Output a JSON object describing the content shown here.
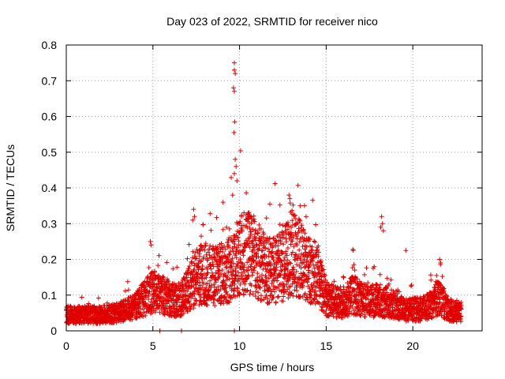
{
  "chart_data": {
    "type": "scatter",
    "title": "Day 023 of 2022, SRMTID for receiver nico",
    "xlabel": "GPS time / hours",
    "ylabel": "SRMTID / TECUs",
    "xlim": [
      0,
      24
    ],
    "ylim": [
      0,
      0.8
    ],
    "xticks": [
      0,
      5,
      10,
      15,
      20
    ],
    "xtick_labels": [
      "0",
      "5",
      "10",
      "15",
      "20"
    ],
    "yticks": [
      0,
      0.1,
      0.2,
      0.3,
      0.4,
      0.5,
      0.6,
      0.7,
      0.8
    ],
    "ytick_labels": [
      "0",
      "0.1",
      "0.2",
      "0.3",
      "0.4",
      "0.5",
      "0.6",
      "0.7",
      "0.8"
    ],
    "grid": true,
    "marker": "+",
    "color": "#e00000",
    "series": [
      {
        "name": "SRMTID",
        "baseline_profile": {
          "hours": [
            0,
            1,
            2,
            3,
            4,
            4.5,
            5,
            5.5,
            6,
            6.5,
            7,
            7.5,
            8,
            8.5,
            9,
            9.5,
            10,
            10.5,
            11,
            11.5,
            12,
            12.5,
            13,
            13.5,
            14,
            14.5,
            15,
            15.5,
            16,
            16.5,
            17,
            17.5,
            18,
            18.5,
            19,
            19.5,
            20,
            20.5,
            21,
            21.5,
            22,
            22.8
          ],
          "typical_srmtid": [
            0.045,
            0.045,
            0.045,
            0.05,
            0.07,
            0.09,
            0.11,
            0.1,
            0.09,
            0.08,
            0.11,
            0.15,
            0.16,
            0.15,
            0.16,
            0.18,
            0.21,
            0.22,
            0.2,
            0.17,
            0.17,
            0.18,
            0.22,
            0.2,
            0.17,
            0.16,
            0.09,
            0.08,
            0.08,
            0.1,
            0.09,
            0.08,
            0.09,
            0.08,
            0.07,
            0.06,
            0.06,
            0.06,
            0.07,
            0.1,
            0.06,
            0.05
          ]
        },
        "notable_points": [
          {
            "x": 9.7,
            "y": 0.75
          },
          {
            "x": 9.7,
            "y": 0.73
          },
          {
            "x": 9.75,
            "y": 0.72
          },
          {
            "x": 9.65,
            "y": 0.68
          },
          {
            "x": 9.7,
            "y": 0.67
          },
          {
            "x": 9.72,
            "y": 0.585
          },
          {
            "x": 9.68,
            "y": 0.555
          },
          {
            "x": 9.75,
            "y": 0.48
          },
          {
            "x": 9.8,
            "y": 0.46
          },
          {
            "x": 9.7,
            "y": 0.44
          },
          {
            "x": 9.85,
            "y": 0.42
          },
          {
            "x": 9.6,
            "y": 0.38
          },
          {
            "x": 7.35,
            "y": 0.34
          },
          {
            "x": 7.4,
            "y": 0.32
          },
          {
            "x": 7.3,
            "y": 0.31
          },
          {
            "x": 12.85,
            "y": 0.38
          },
          {
            "x": 12.9,
            "y": 0.37
          },
          {
            "x": 13.5,
            "y": 0.35
          },
          {
            "x": 11.75,
            "y": 0.355
          },
          {
            "x": 9.05,
            "y": 0.36
          },
          {
            "x": 10.5,
            "y": 0.33
          },
          {
            "x": 18.2,
            "y": 0.32
          },
          {
            "x": 18.25,
            "y": 0.3
          },
          {
            "x": 18.15,
            "y": 0.29
          },
          {
            "x": 18.3,
            "y": 0.28
          },
          {
            "x": 4.85,
            "y": 0.25
          },
          {
            "x": 4.9,
            "y": 0.24
          },
          {
            "x": 19.6,
            "y": 0.225
          },
          {
            "x": 21.55,
            "y": 0.2
          },
          {
            "x": 21.6,
            "y": 0.19
          },
          {
            "x": 16.6,
            "y": 0.185
          },
          {
            "x": 16.65,
            "y": 0.17
          },
          {
            "x": 5.4,
            "y": 0.0
          },
          {
            "x": 6.65,
            "y": 0.0
          },
          {
            "x": 9.7,
            "y": 0.0
          }
        ]
      }
    ]
  }
}
